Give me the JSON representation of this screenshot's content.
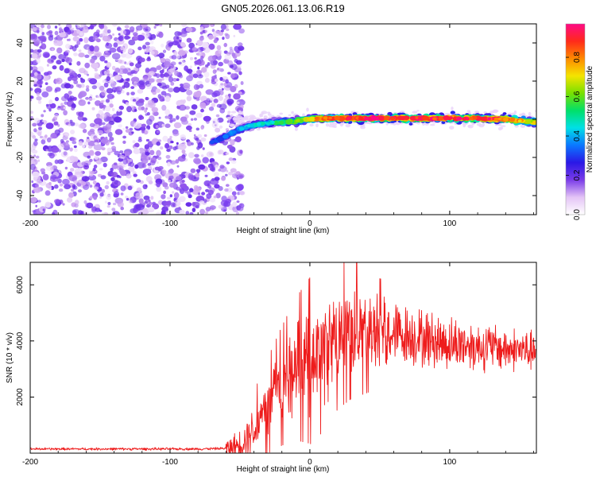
{
  "title": "GN05.2026.061.13.06.R19",
  "chart_data": [
    {
      "type": "heatmap",
      "xlabel": "Height of straight line (km)",
      "ylabel": "Frequency (Hz)",
      "xlim": [
        -200,
        162
      ],
      "ylim": [
        -50,
        50
      ],
      "xticks": [
        -200,
        -100,
        0,
        100
      ],
      "yticks": [
        -40,
        -20,
        0,
        20,
        40
      ],
      "colorbar": {
        "label": "Normalized spectral amplitude",
        "range": [
          0,
          0.97
        ],
        "ticks": [
          "0.0",
          "0.2",
          "0.4",
          "0.6",
          "0.8"
        ],
        "colors": [
          "#ffffff",
          "#e4c4f6",
          "#7a3ce8",
          "#2a18e6",
          "#0a78ff",
          "#00e0e6",
          "#00e06a",
          "#78e000",
          "#f4e400",
          "#ff8a00",
          "#ff2a1a",
          "#ff0a86"
        ]
      },
      "noise_region": {
        "x": [
          -200,
          -52
        ],
        "y": [
          -50,
          50
        ],
        "amplitude_range": [
          0,
          0.08
        ]
      },
      "ridge": {
        "x": [
          -70,
          -60,
          -50,
          -40,
          -30,
          -20,
          -10,
          0,
          10,
          20,
          40,
          60,
          80,
          100,
          120,
          140,
          160
        ],
        "frequency": [
          -12,
          -9,
          -5,
          -3,
          -2,
          -1.5,
          -1,
          0,
          0.5,
          0.5,
          0.5,
          0.5,
          0.5,
          0.5,
          0.5,
          0,
          -1.5
        ],
        "peak_amplitude": [
          0.3,
          0.35,
          0.4,
          0.45,
          0.5,
          0.55,
          0.65,
          0.75,
          0.85,
          0.9,
          0.95,
          0.95,
          0.95,
          0.95,
          0.95,
          0.9,
          0.7
        ]
      }
    },
    {
      "type": "line",
      "xlabel": "Height of straight line (km)",
      "ylabel": "SNR (10 * v/v)",
      "xlim": [
        -200,
        162
      ],
      "ylim": [
        0,
        6800
      ],
      "xticks": [
        -200,
        -100,
        0,
        100
      ],
      "yticks": [
        2000,
        4000,
        6000
      ],
      "color": "#ee1c1c",
      "series": [
        {
          "x": [
            -200,
            -180,
            -160,
            -140,
            -120,
            -100,
            -80,
            -60,
            -50,
            -40,
            -30,
            -20,
            -10,
            0,
            10,
            20,
            30,
            40,
            50,
            60,
            70,
            80,
            90,
            100,
            110,
            120,
            130,
            140,
            150,
            160
          ],
          "y": [
            150,
            150,
            150,
            150,
            150,
            150,
            150,
            170,
            300,
            900,
            1700,
            2400,
            3000,
            3300,
            3600,
            4200,
            4400,
            4400,
            4400,
            4300,
            4200,
            4100,
            4000,
            3900,
            3900,
            3800,
            3800,
            3700,
            3700,
            3600
          ]
        }
      ]
    }
  ]
}
